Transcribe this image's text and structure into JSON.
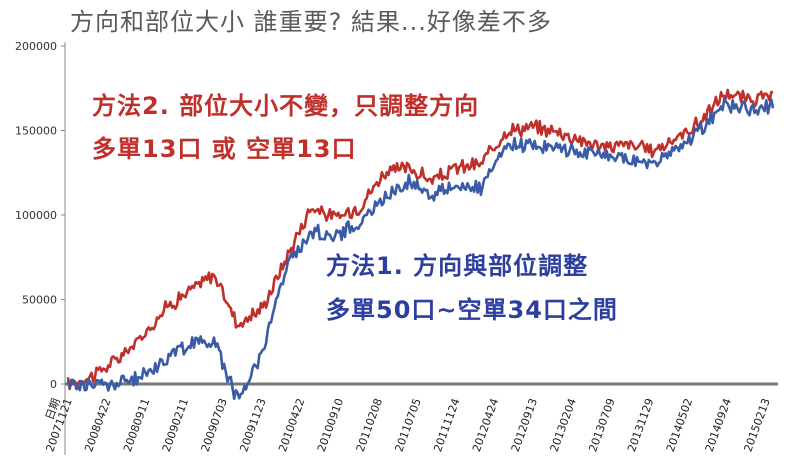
{
  "chart_data": {
    "type": "line",
    "title": "方向和部位大小 誰重要? 結果...好像差不多",
    "xlabel": "",
    "ylabel": "",
    "ylim": [
      0,
      200000
    ],
    "yticks": [
      0,
      50000,
      100000,
      150000,
      200000
    ],
    "ytick_labels": [
      "0",
      "50000",
      "100000",
      "150000",
      "200000"
    ],
    "xtick_labels": [
      "日期",
      "20071121",
      "20080422",
      "20080911",
      "20090211",
      "20090703",
      "20091123",
      "20100422",
      "20100910",
      "20110208",
      "20110705",
      "20111124",
      "20120424",
      "20120913",
      "20130204",
      "20130709",
      "20131129",
      "20140502",
      "20140924",
      "20150213"
    ],
    "grid": false,
    "series": [
      {
        "color": "#c0302b",
        "values": [
          0,
          5000,
          14000,
          27000,
          45000,
          55000,
          65000,
          35000,
          45000,
          75000,
          105000,
          98000,
          105000,
          125000,
          128000,
          120000,
          128000,
          130000,
          150000,
          152000,
          150000,
          145000,
          140000,
          142000,
          138000,
          145000,
          155000,
          172000,
          168000,
          170000
        ]
      },
      {
        "color": "#3a5ca8",
        "values": [
          0,
          0,
          0,
          4000,
          15000,
          24000,
          26000,
          -10000,
          20000,
          70000,
          90000,
          88000,
          95000,
          110000,
          120000,
          112000,
          118000,
          115000,
          140000,
          142000,
          140000,
          138000,
          135000,
          133000,
          130000,
          138000,
          150000,
          166000,
          162000,
          165000
        ]
      }
    ],
    "annotations": [
      {
        "text": "方法2. 部位大小不變，只調整方向",
        "color": "#c0302b"
      },
      {
        "text": "多單13口 或 空單13口",
        "color": "#c0302b"
      },
      {
        "text": "方法1. 方向與部位調整",
        "color": "#2c3e9e"
      },
      {
        "text": "多單50口~空單34口之間",
        "color": "#2c3e9e"
      }
    ]
  }
}
